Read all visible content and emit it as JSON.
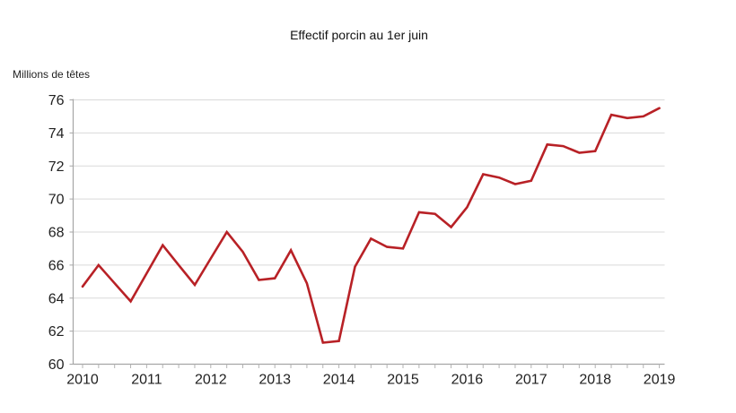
{
  "page": {
    "title": "Effectif porcin au 1er juin",
    "y_axis_unit": "Millions de têtes"
  },
  "colors": {
    "line": "#b82126",
    "grid": "#d9d9d9",
    "axis": "#a6a6a6",
    "minor_tick": "#b3b3b3",
    "text": "#212121"
  },
  "chart_data": {
    "type": "line",
    "title": "Effectif porcin au 1er juin",
    "xlabel": "",
    "ylabel": "Millions de têtes",
    "grid": "horizontal",
    "legend": false,
    "line_color": "#b82126",
    "ylim": [
      60,
      76
    ],
    "xlim": [
      2009.84,
      2019.08
    ],
    "y_ticks": [
      60,
      62,
      64,
      66,
      68,
      70,
      72,
      74,
      76
    ],
    "x_ticks": [
      2010,
      2011,
      2012,
      2013,
      2014,
      2015,
      2016,
      2017,
      2018,
      2019
    ],
    "x_tick_labels": [
      "2010",
      "2011",
      "2012",
      "2013",
      "2014",
      "2015",
      "2016",
      "2017",
      "2018",
      "2019"
    ],
    "minor_tick_step": 0.25,
    "series": [
      {
        "name": "Effectif porcin",
        "x": [
          2010.0,
          2010.25,
          2010.5,
          2010.75,
          2011.0,
          2011.25,
          2011.5,
          2011.75,
          2012.0,
          2012.25,
          2012.5,
          2012.75,
          2013.0,
          2013.25,
          2013.5,
          2013.75,
          2014.0,
          2014.25,
          2014.5,
          2014.75,
          2015.0,
          2015.25,
          2015.5,
          2015.75,
          2016.0,
          2016.25,
          2016.5,
          2016.75,
          2017.0,
          2017.25,
          2017.5,
          2017.75,
          2018.0,
          2018.25,
          2018.5,
          2018.75,
          2019.0
        ],
        "values": [
          64.7,
          66.0,
          64.9,
          63.8,
          65.5,
          67.2,
          66.0,
          64.8,
          66.4,
          68.0,
          66.8,
          65.1,
          65.2,
          66.9,
          64.9,
          61.3,
          61.4,
          65.9,
          67.6,
          67.1,
          67.0,
          69.2,
          69.1,
          68.3,
          69.5,
          71.5,
          71.3,
          70.9,
          71.1,
          73.3,
          73.2,
          72.8,
          72.9,
          75.1,
          74.9,
          75.0,
          75.5
        ]
      }
    ]
  }
}
